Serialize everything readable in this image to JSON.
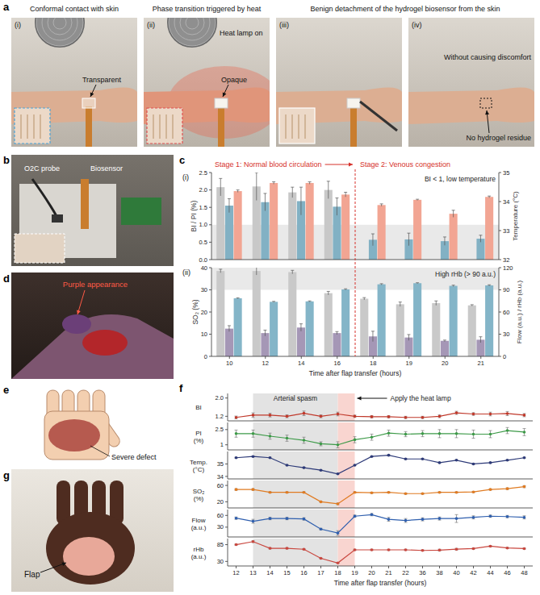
{
  "figure": {
    "panel_labels": [
      "a",
      "b",
      "c",
      "d",
      "e",
      "f",
      "g"
    ],
    "a": {
      "captions": [
        "Conformal contact with skin",
        "Phase transition triggered by heat",
        "Benign detachment of the hydrogel biosensor from the skin"
      ],
      "subpanels": [
        "(i)",
        "(ii)",
        "(iii)",
        "(iv)"
      ],
      "annotations": [
        "Transparent",
        "Heat lamp on",
        "Opaque",
        "Without causing discomfort",
        "No hydrogel residue"
      ]
    },
    "b": {
      "annotations": [
        "O2C probe",
        "Biosensor"
      ]
    },
    "d": {
      "annotations": [
        "Purple appearance"
      ]
    },
    "e": {
      "annotations": [
        "Severe defect"
      ]
    },
    "g": {
      "annotations": [
        "Flap"
      ]
    }
  },
  "chart_data": [
    {
      "type": "bar",
      "title": "(i)",
      "categories": [
        "10",
        "12",
        "14",
        "16",
        "18",
        "19",
        "20",
        "21"
      ],
      "ylabel": "BI / PI (%)",
      "y2label": "Temperature (°C)",
      "ylim": [
        0,
        2.5
      ],
      "yticks": [
        {
          "value": 0,
          "label": "0.0"
        },
        0.5,
        {
          "value": 1,
          "label": "1.0"
        },
        1.5,
        {
          "value": 2,
          "label": "2.0"
        },
        2.5
      ],
      "y2lim": [
        32,
        35
      ],
      "y2ticks": [
        32,
        33,
        34,
        35
      ],
      "series": [
        {
          "color": "#c8c8c8",
          "values": [
            2.08,
            2.1,
            1.93,
            2.0,
            null,
            null,
            null,
            null
          ],
          "errors": [
            0.25,
            0.4,
            0.15,
            0.25,
            null,
            null,
            null,
            null
          ]
        },
        {
          "color": "#82b1c4",
          "values": [
            1.55,
            1.65,
            1.68,
            1.52,
            0.57,
            0.58,
            0.53,
            0.6
          ],
          "errors": [
            0.2,
            0.25,
            0.4,
            0.25,
            0.17,
            0.18,
            0.12,
            0.1
          ]
        },
        {
          "color": "#f2a593",
          "axis": "y2",
          "values": [
            34.36,
            34.64,
            34.64,
            34.24,
            33.88,
            34.06,
            33.58,
            34.16
          ],
          "errors": [
            0.04,
            0.04,
            0.04,
            0.08,
            0.04,
            0.02,
            0.12,
            0.03
          ]
        }
      ],
      "tick_labels": "y",
      "band": {
        "axis": "y",
        "range": [
          0,
          1
        ]
      },
      "stages": [
        {
          "text": "Stage 1: Normal blood circulation",
          "x": "10"
        },
        {
          "text": "Stage 2: Venous congestion",
          "x": "18"
        }
      ],
      "annotations": [
        {
          "text": "BI < 1, low temperature"
        }
      ]
    },
    {
      "type": "bar",
      "title": "(ii)",
      "categories": [
        "10",
        "12",
        "14",
        "16",
        "18",
        "19",
        "20",
        "21"
      ],
      "ylabel": "SO₂ (%)",
      "y2label": "Flow (a.u.) / rHb (a.u.)",
      "xlabel": "Time after flap transfer (hours)",
      "ylim": [
        0,
        40
      ],
      "yticks": [
        0,
        10,
        20,
        30,
        40
      ],
      "y2lim": [
        0,
        120
      ],
      "y2ticks": [
        0,
        30,
        60,
        90,
        120
      ],
      "series": [
        {
          "color": "#c9c9c9",
          "values": [
            38.5,
            38.5,
            38,
            28.5,
            26,
            23.5,
            24,
            23
          ],
          "errors": [
            0.8,
            1.8,
            0.8,
            0.8,
            0.5,
            1,
            1,
            0.3
          ]
        },
        {
          "color": "#a597b6",
          "axis": "y2",
          "values": [
            37.5,
            31.5,
            39,
            31.5,
            27,
            25.5,
            21,
            22.5
          ],
          "errors": [
            4,
            4,
            5,
            2,
            7,
            4,
            1,
            4
          ]
        },
        {
          "color": "#84b5c8",
          "axis": "y2",
          "values": [
            78.6,
            73.8,
            74.4,
            90.6,
            97.5,
            99,
            95.4,
            96
          ],
          "errors": [
            0.6,
            0.6,
            0.6,
            0.8,
            0.8,
            0.6,
            0.9,
            0.8
          ]
        }
      ],
      "band": {
        "axis": "y2",
        "range": [
          90,
          120
        ]
      },
      "annotations": [
        {
          "text": "High rHb (> 90 a.u.)"
        }
      ]
    },
    {
      "type": "line",
      "categories": [
        "12",
        "13",
        "14",
        "15",
        "16",
        "17",
        "18",
        "19",
        "20",
        "21",
        "22",
        "36",
        "38",
        "40",
        "42",
        "44",
        "46",
        "48"
      ],
      "ylabel": "BI",
      "ylim": [
        1.0,
        2.2
      ],
      "yticks": [
        1.2,
        {
          "value": 2,
          "label": "2.0"
        }
      ],
      "series": [
        {
          "color": "#c0392b",
          "marker": "circle",
          "line_style": "solid",
          "values": [
            1.15,
            1.25,
            1.25,
            1.2,
            1.33,
            1.2,
            1.3,
            1.2,
            1.18,
            1.18,
            1.15,
            1.15,
            1.2,
            1.35,
            1.3,
            1.3,
            1.32,
            1.25
          ],
          "errors": [
            0.06,
            0.1,
            0.08,
            0.06,
            0.1,
            0.06,
            0.08,
            0.05,
            0.05,
            0.05,
            0.05,
            0.05,
            0.06,
            0.07,
            0.06,
            0.08,
            0.09,
            0.07
          ]
        }
      ],
      "tick_labels": "y",
      "annotations": [
        {
          "text": "Arterial spasm",
          "x": [
            "13",
            "18"
          ]
        },
        {
          "text": "Apply the heat lamp",
          "x": [
            "18",
            "19"
          ]
        }
      ]
    },
    {
      "type": "line",
      "categories": [
        "12",
        "13",
        "14",
        "15",
        "16",
        "17",
        "18",
        "19",
        "20",
        "21",
        "22",
        "36",
        "38",
        "40",
        "42",
        "44",
        "46",
        "48"
      ],
      "ylabel": "PI (%)",
      "ylim": [
        0.5,
        3.2
      ],
      "yticks": [
        1,
        2.5
      ],
      "series": [
        {
          "color": "#3d9a48",
          "marker": "circle",
          "line_style": "solid",
          "values": [
            2.1,
            2.1,
            1.85,
            1.65,
            1.45,
            1.1,
            1.0,
            1.5,
            1.75,
            2.15,
            2.05,
            2.1,
            2.1,
            2.1,
            2.05,
            2.05,
            2.4,
            2.25
          ],
          "errors": [
            0.35,
            0.35,
            0.3,
            0.3,
            0.3,
            0.2,
            0.3,
            0.3,
            0.3,
            0.3,
            0.25,
            0.3,
            0.4,
            0.4,
            0.4,
            0.35,
            0.3,
            0.35
          ]
        }
      ],
      "tick_labels": "y"
    },
    {
      "type": "line",
      "categories": [
        "12",
        "13",
        "14",
        "15",
        "16",
        "17",
        "18",
        "19",
        "20",
        "21",
        "22",
        "36",
        "38",
        "40",
        "42",
        "44",
        "46",
        "48"
      ],
      "ylabel": "Temp. (°C)",
      "ylim": [
        33.8,
        36.0
      ],
      "yticks": [
        34,
        35
      ],
      "series": [
        {
          "color": "#2d3a78",
          "marker": "circle",
          "line_style": "solid",
          "values": [
            35.5,
            35.6,
            35.5,
            34.9,
            34.7,
            34.5,
            34.2,
            34.9,
            35.6,
            35.7,
            35.4,
            35.4,
            35.1,
            35.3,
            35.0,
            35.1,
            35.3,
            35.5
          ],
          "errors": [
            0.04,
            0.04,
            0.04,
            0.04,
            0.04,
            0.04,
            0.04,
            0.04,
            0.04,
            0.04,
            0.04,
            0.04,
            0.04,
            0.04,
            0.04,
            0.04,
            0.04,
            0.04
          ]
        }
      ],
      "tick_labels": "y"
    },
    {
      "type": "line",
      "categories": [
        "12",
        "13",
        "14",
        "15",
        "16",
        "17",
        "18",
        "19",
        "20",
        "21",
        "22",
        "36",
        "38",
        "40",
        "42",
        "44",
        "46",
        "48"
      ],
      "ylabel": "SO₂ (%)",
      "ylim": [
        5,
        72
      ],
      "yticks": [
        20,
        60
      ],
      "series": [
        {
          "color": "#e07b22",
          "marker": "circle",
          "line_style": "solid",
          "values": [
            50,
            50,
            43,
            43,
            43,
            20,
            15,
            43,
            42,
            43,
            40,
            40,
            43,
            43,
            44,
            50,
            52,
            57
          ],
          "errors": [
            2,
            2,
            1.5,
            1.5,
            1.5,
            1,
            2,
            1.5,
            1.5,
            1.5,
            1.5,
            1.5,
            1.5,
            1.5,
            1.5,
            1.5,
            2,
            2.5
          ]
        }
      ],
      "tick_labels": "y"
    },
    {
      "type": "line",
      "categories": [
        "12",
        "13",
        "14",
        "15",
        "16",
        "17",
        "18",
        "19",
        "20",
        "21",
        "22",
        "36",
        "38",
        "40",
        "42",
        "44",
        "46",
        "48"
      ],
      "ylabel": "Flow (a.u.)",
      "ylim": [
        5,
        75
      ],
      "yticks": [
        30,
        60
      ],
      "series": [
        {
          "color": "#2f5fae",
          "marker": "circle",
          "line_style": "solid",
          "values": [
            53,
            45,
            52,
            52,
            51,
            25,
            15,
            58,
            62,
            50,
            47,
            50,
            52,
            52,
            55,
            58,
            57,
            55
          ],
          "errors": [
            3,
            5,
            3,
            3,
            3,
            2,
            6,
            3,
            3,
            5,
            5,
            4,
            4,
            10,
            4,
            3,
            3,
            4
          ]
        }
      ],
      "tick_labels": "y"
    },
    {
      "type": "line",
      "categories": [
        "12",
        "13",
        "14",
        "15",
        "16",
        "17",
        "18",
        "19",
        "20",
        "21",
        "22",
        "36",
        "38",
        "40",
        "42",
        "44",
        "46",
        "48"
      ],
      "ylabel": "rHb (a.u.)",
      "xlabel": "Time after flap transfer (hours)",
      "ylim": [
        15,
        105
      ],
      "yticks": [
        30,
        85
      ],
      "series": [
        {
          "color": "#c9473f",
          "marker": "circle",
          "line_style": "solid",
          "values": [
            85,
            95,
            73,
            73,
            70,
            40,
            25,
            68,
            68,
            68,
            68,
            66,
            67,
            70,
            72,
            80,
            74,
            72
          ],
          "errors": [
            2,
            3,
            2,
            2,
            2,
            1,
            1,
            2,
            2,
            2,
            2,
            2,
            3,
            3,
            2,
            2,
            2,
            2
          ]
        }
      ]
    }
  ]
}
